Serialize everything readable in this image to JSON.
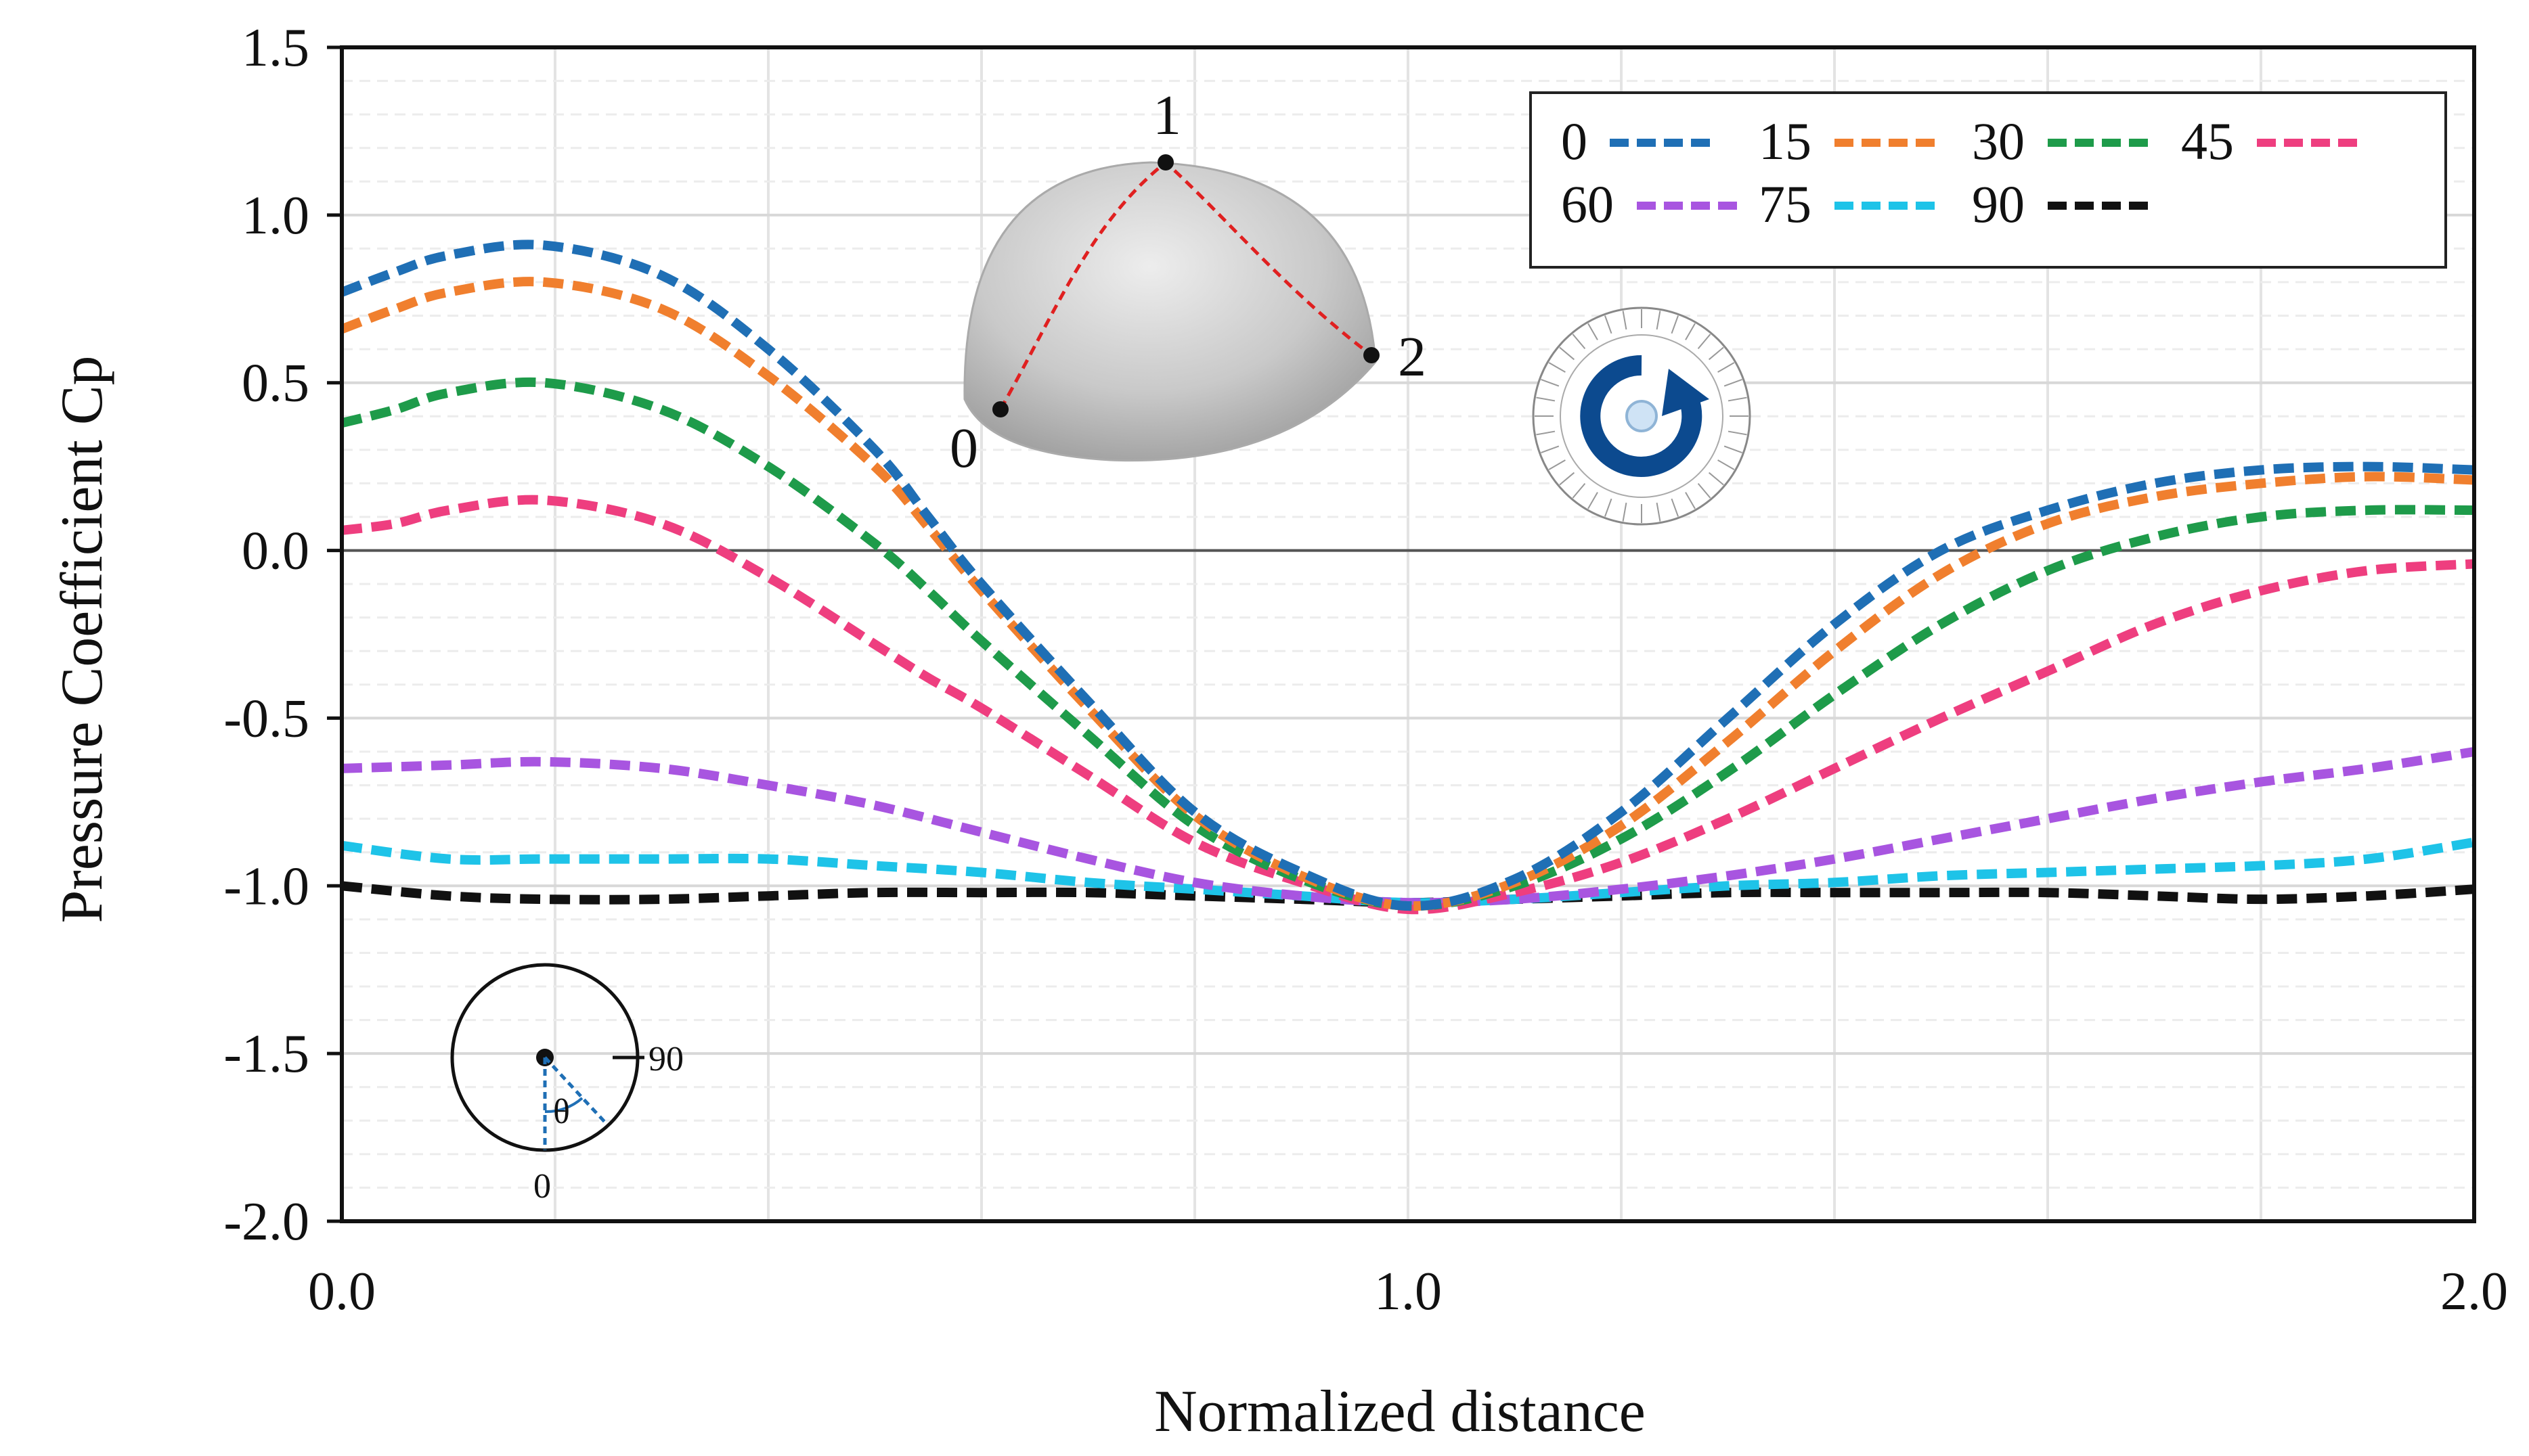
{
  "chart_data": {
    "type": "line",
    "xlabel": "Normalized distance",
    "ylabel": "Pressure Coefficient  Cp",
    "xlim": [
      0.0,
      2.0
    ],
    "ylim": [
      -2.0,
      1.5
    ],
    "xticks": [
      "0.0",
      "1.0",
      "2.0"
    ],
    "yticks": [
      "1.5",
      "1.0",
      "0.5",
      "0.0",
      "-0.5",
      "-1.0",
      "-1.5",
      "-2.0"
    ],
    "grid": true,
    "legend_position": "top-right",
    "series": [
      {
        "name": "0",
        "color": "#1f6fb5",
        "x": [
          0,
          0.05,
          0.1,
          0.19,
          0.3,
          0.4,
          0.5,
          0.55,
          0.6,
          0.7,
          0.8,
          0.9,
          1.0,
          1.1,
          1.2,
          1.3,
          1.4,
          1.5,
          1.6,
          1.7,
          1.8,
          1.9,
          2.0
        ],
        "y": [
          0.77,
          0.83,
          0.88,
          0.91,
          0.82,
          0.6,
          0.3,
          0.1,
          -0.1,
          -0.45,
          -0.78,
          -0.96,
          -1.06,
          -0.98,
          -0.78,
          -0.5,
          -0.22,
          0.0,
          0.12,
          0.2,
          0.24,
          0.25,
          0.24
        ]
      },
      {
        "name": "15",
        "color": "#f07f2e",
        "x": [
          0,
          0.05,
          0.1,
          0.19,
          0.3,
          0.4,
          0.5,
          0.55,
          0.6,
          0.7,
          0.8,
          0.9,
          1.0,
          1.1,
          1.2,
          1.3,
          1.4,
          1.5,
          1.6,
          1.7,
          1.8,
          1.9,
          2.0
        ],
        "y": [
          0.66,
          0.72,
          0.77,
          0.8,
          0.72,
          0.52,
          0.25,
          0.07,
          -0.12,
          -0.47,
          -0.79,
          -0.97,
          -1.06,
          -0.99,
          -0.82,
          -0.57,
          -0.3,
          -0.07,
          0.08,
          0.16,
          0.2,
          0.22,
          0.21
        ]
      },
      {
        "name": "30",
        "color": "#1e9b4a",
        "x": [
          0,
          0.05,
          0.1,
          0.19,
          0.3,
          0.4,
          0.5,
          0.55,
          0.6,
          0.7,
          0.8,
          0.9,
          1.0,
          1.1,
          1.2,
          1.3,
          1.4,
          1.5,
          1.6,
          1.7,
          1.8,
          1.9,
          2.0
        ],
        "y": [
          0.38,
          0.42,
          0.47,
          0.5,
          0.42,
          0.25,
          0.02,
          -0.12,
          -0.27,
          -0.55,
          -0.82,
          -0.98,
          -1.06,
          -1.0,
          -0.86,
          -0.66,
          -0.43,
          -0.22,
          -0.06,
          0.04,
          0.1,
          0.12,
          0.12
        ]
      },
      {
        "name": "45",
        "color": "#ee3e7f",
        "x": [
          0,
          0.05,
          0.1,
          0.19,
          0.3,
          0.4,
          0.5,
          0.55,
          0.6,
          0.7,
          0.8,
          0.9,
          1.0,
          1.1,
          1.2,
          1.3,
          1.4,
          1.5,
          1.6,
          1.7,
          1.8,
          1.9,
          2.0
        ],
        "y": [
          0.06,
          0.08,
          0.12,
          0.15,
          0.08,
          -0.08,
          -0.28,
          -0.38,
          -0.47,
          -0.67,
          -0.87,
          -0.99,
          -1.07,
          -1.02,
          -0.93,
          -0.8,
          -0.65,
          -0.5,
          -0.36,
          -0.22,
          -0.12,
          -0.06,
          -0.04
        ]
      },
      {
        "name": "60",
        "color": "#a855e0",
        "x": [
          0,
          0.1,
          0.19,
          0.3,
          0.4,
          0.5,
          0.6,
          0.7,
          0.8,
          0.9,
          1.0,
          1.1,
          1.2,
          1.3,
          1.4,
          1.5,
          1.6,
          1.7,
          1.8,
          1.9,
          2.0
        ],
        "y": [
          -0.65,
          -0.64,
          -0.63,
          -0.65,
          -0.7,
          -0.76,
          -0.84,
          -0.92,
          -0.99,
          -1.03,
          -1.05,
          -1.04,
          -1.01,
          -0.97,
          -0.92,
          -0.86,
          -0.8,
          -0.74,
          -0.69,
          -0.65,
          -0.6
        ]
      },
      {
        "name": "75",
        "color": "#1ec3e8",
        "x": [
          0,
          0.1,
          0.19,
          0.3,
          0.4,
          0.5,
          0.6,
          0.7,
          0.8,
          0.9,
          1.0,
          1.1,
          1.2,
          1.3,
          1.4,
          1.5,
          1.6,
          1.7,
          1.8,
          1.9,
          2.0
        ],
        "y": [
          -0.88,
          -0.92,
          -0.92,
          -0.92,
          -0.92,
          -0.94,
          -0.96,
          -0.99,
          -1.01,
          -1.03,
          -1.05,
          -1.04,
          -1.02,
          -1.0,
          -0.99,
          -0.97,
          -0.96,
          -0.95,
          -0.94,
          -0.92,
          -0.87
        ]
      },
      {
        "name": "90",
        "color": "#111111",
        "x": [
          0,
          0.1,
          0.19,
          0.3,
          0.4,
          0.5,
          0.6,
          0.7,
          0.8,
          0.9,
          1.0,
          1.1,
          1.2,
          1.3,
          1.4,
          1.5,
          1.6,
          1.7,
          1.8,
          1.9,
          2.0
        ],
        "y": [
          -1.0,
          -1.03,
          -1.04,
          -1.04,
          -1.03,
          -1.02,
          -1.02,
          -1.02,
          -1.03,
          -1.04,
          -1.05,
          -1.04,
          -1.03,
          -1.02,
          -1.02,
          -1.02,
          -1.02,
          -1.03,
          -1.04,
          -1.03,
          -1.01
        ]
      }
    ],
    "inset_dome_labels": [
      "1",
      "2",
      "0"
    ],
    "inset_angle_labels": [
      "90",
      "0",
      "θ"
    ]
  }
}
